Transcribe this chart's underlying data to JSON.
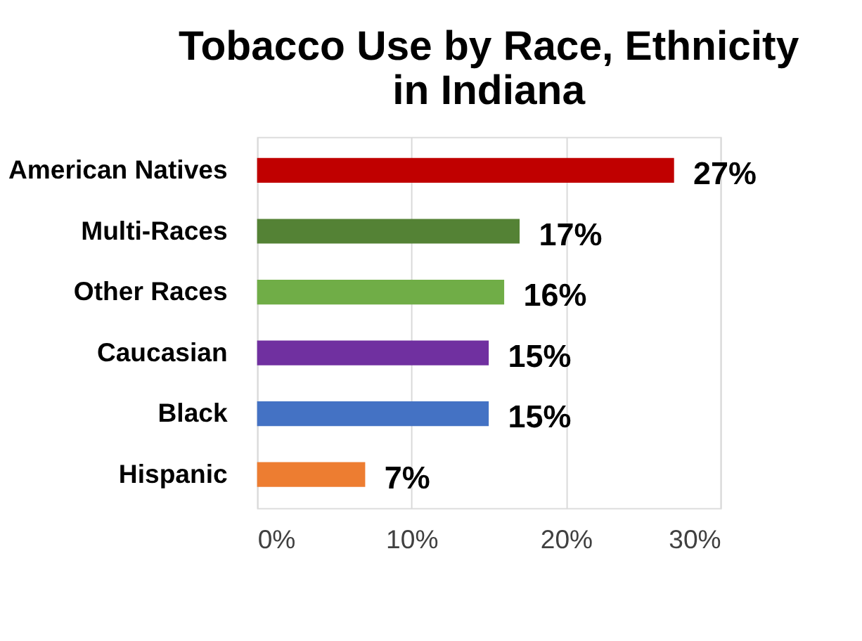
{
  "chart_data": {
    "type": "bar",
    "orientation": "horizontal",
    "title": "Tobacco Use by Race, Ethnicity\nin Indiana",
    "categories": [
      "American Natives",
      "Multi-Races",
      "Other Races",
      "Caucasian",
      "Black",
      "Hispanic"
    ],
    "values": [
      27,
      17,
      16,
      15,
      15,
      7
    ],
    "value_labels": [
      "27%",
      "17%",
      "16%",
      "15%",
      "15%",
      "7%"
    ],
    "colors": [
      "#c00000",
      "#548235",
      "#70ad47",
      "#7030a0",
      "#4472c4",
      "#ed7d31"
    ],
    "xlim": [
      0,
      30
    ],
    "xticks": [
      {
        "value": 0,
        "label": "0%"
      },
      {
        "value": 10,
        "label": "10%"
      },
      {
        "value": 20,
        "label": "20%"
      },
      {
        "value": 30,
        "label": "30%"
      }
    ],
    "grid": "x",
    "legend": false
  }
}
